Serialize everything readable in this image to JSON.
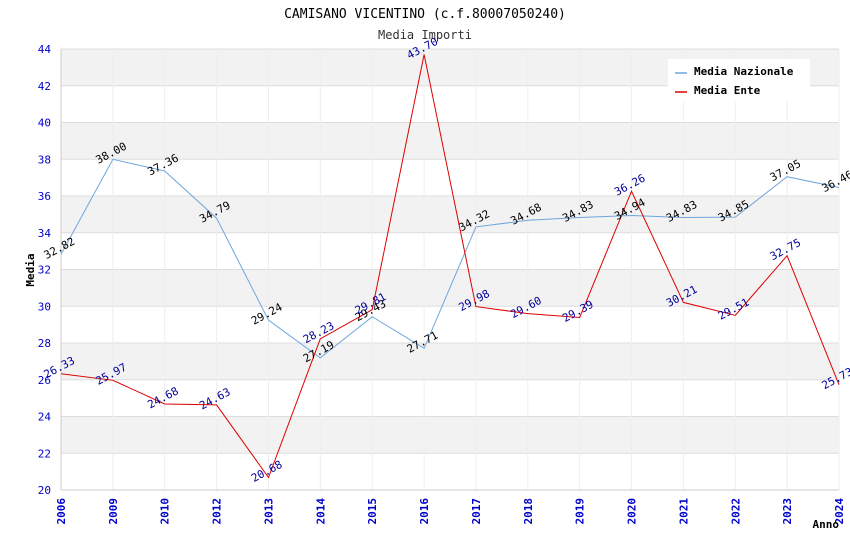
{
  "chart_data": {
    "type": "line",
    "title": "CAMISANO VICENTINO (c.f.80007050240)",
    "subtitle": "Media Importi",
    "xlabel": "Anno",
    "ylabel": "Media",
    "ylim": [
      20,
      44
    ],
    "yticks": [
      "20",
      "22",
      "24",
      "26",
      "28",
      "30",
      "32",
      "34",
      "36",
      "38",
      "40",
      "42",
      "44"
    ],
    "categories": [
      "2006",
      "2009",
      "2010",
      "2012",
      "2013",
      "2014",
      "2015",
      "2016",
      "2017",
      "2018",
      "2019",
      "2020",
      "2021",
      "2022",
      "2023",
      "2024"
    ],
    "grid": "horizontal alternating bands",
    "legend_position": "top-right",
    "series": [
      {
        "name": "Media Nazionale",
        "color": "#6ea6dc",
        "values": [
          32.82,
          38.0,
          37.36,
          34.79,
          29.24,
          27.19,
          29.43,
          27.71,
          34.32,
          34.68,
          34.83,
          34.94,
          34.83,
          34.85,
          37.05,
          36.46
        ],
        "labels": [
          "32.82",
          "38.00",
          "37.36",
          "34.79",
          "29.24",
          "27.19",
          "29.43",
          "27.71",
          "34.32",
          "34.68",
          "34.83",
          "34.94",
          "34.83",
          "34.85",
          "37.05",
          "36.46"
        ]
      },
      {
        "name": "Media Ente",
        "color": "#dd0000",
        "values": [
          26.33,
          25.97,
          24.68,
          24.63,
          20.68,
          28.23,
          29.81,
          43.7,
          29.98,
          29.6,
          29.39,
          36.26,
          30.21,
          29.51,
          32.75,
          25.73
        ],
        "labels": [
          "26.33",
          "25.97",
          "24.68",
          "24.63",
          "20.68",
          "28.23",
          "29.81",
          "43.70",
          "29.98",
          "29.60",
          "29.39",
          "36.26",
          "30.21",
          "29.51",
          "32.75",
          "25.73"
        ]
      }
    ]
  }
}
